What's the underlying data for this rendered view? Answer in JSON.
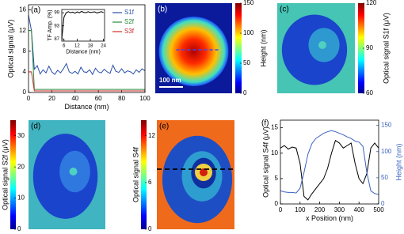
{
  "chart_data": [
    {
      "type": "line",
      "label": "(a)",
      "xlabel": "Distance (nm)",
      "ylabel": "Optical signal (μV)",
      "xlim": [
        0,
        100
      ],
      "xticks": [
        0,
        20,
        40,
        60,
        80,
        100
      ],
      "ylim": [
        0,
        17
      ],
      "yticks": [
        0,
        4,
        8,
        12,
        16
      ],
      "legend": "upper right",
      "x": [
        0,
        2.5,
        5,
        7.5,
        10,
        12.5,
        15,
        17.5,
        20,
        22.5,
        25,
        27.5,
        30,
        32.5,
        35,
        37.5,
        40,
        42.5,
        45,
        47.5,
        50,
        52.5,
        55,
        57.5,
        60,
        62.5,
        65,
        67.5,
        70,
        72.5,
        75,
        77.5,
        80,
        82.5,
        85,
        87.5,
        90,
        92.5,
        95,
        97.5,
        100
      ],
      "series": [
        {
          "name": "S1f",
          "color": "#2a4fa8",
          "values": [
            15,
            12,
            4.5,
            5.2,
            3.6,
            4.4,
            3.8,
            5.1,
            4.0,
            3.5,
            4.3,
            3.8,
            4.6,
            5.6,
            4.0,
            3.7,
            4.1,
            3.6,
            4.9,
            4.0,
            3.9,
            4.4,
            3.5,
            4.7,
            4.0,
            3.8,
            4.5,
            4.0,
            3.7,
            5.3,
            4.1,
            3.9,
            4.6,
            3.8,
            4.2,
            4.0,
            3.6,
            4.4,
            3.9,
            4.6,
            4.2
          ]
        },
        {
          "name": "S2f",
          "color": "#2a8a3a",
          "values": [
            12,
            12,
            0.6,
            0.6,
            0.6,
            0.6,
            0.6,
            0.6,
            0.6,
            0.6,
            0.6,
            0.6,
            0.6,
            0.6,
            0.6,
            0.6,
            0.6,
            0.6,
            0.6,
            0.6,
            0.6,
            0.6,
            0.6,
            0.6,
            0.6,
            0.6,
            0.6,
            0.6,
            0.6,
            0.6,
            0.6,
            0.6,
            0.6,
            0.6,
            0.6,
            0.6,
            0.6,
            0.6,
            0.6,
            0.6,
            0.6
          ]
        },
        {
          "name": "S3f",
          "color": "#d02a2a",
          "values": [
            4,
            4,
            0.3,
            0.3,
            0.3,
            0.3,
            0.3,
            0.3,
            0.3,
            0.3,
            0.3,
            0.3,
            0.3,
            0.3,
            0.3,
            0.3,
            0.3,
            0.3,
            0.3,
            0.3,
            0.3,
            0.3,
            0.3,
            0.3,
            0.3,
            0.3,
            0.3,
            0.3,
            0.3,
            0.3,
            0.3,
            0.3,
            0.3,
            0.3,
            0.3,
            0.3,
            0.3,
            0.3,
            0.3,
            0.3,
            0.3
          ]
        }
      ],
      "inset": {
        "xlabel": "Distance (nm)",
        "ylabel": "TF Amp. (%)",
        "xlim": [
          5,
          24.5
        ],
        "xticks": [
          6,
          12,
          18,
          24
        ],
        "ylim": [
          86,
          100.5
        ],
        "yticks": [
          87,
          93,
          99
        ],
        "color": "#000000",
        "x": [
          5,
          6,
          7,
          8,
          9,
          10,
          11,
          12,
          13,
          14,
          15,
          16,
          17,
          18,
          19,
          20,
          21,
          22,
          23,
          24
        ],
        "values": [
          87,
          97,
          99,
          99.5,
          99,
          99.3,
          98.8,
          99.4,
          99,
          99.6,
          99.2,
          99,
          99.5,
          99.1,
          99.3,
          99.4,
          98.9,
          99.2,
          99.5,
          99.1
        ]
      }
    },
    {
      "type": "image",
      "label": "(b)",
      "annotation": "100 nm",
      "colorbar": {
        "label": "Height (nm)",
        "lim": [
          0,
          150
        ],
        "ticks": [
          0,
          50,
          100,
          150
        ]
      }
    },
    {
      "type": "image",
      "label": "(c)",
      "colorbar": {
        "label": "Optical signal S1f (μV)",
        "lim": [
          60,
          120
        ],
        "ticks": [
          60,
          90,
          120
        ]
      }
    },
    {
      "type": "image",
      "label": "(d)",
      "colorbar": {
        "label": "Optical signal S2f (μV)",
        "lim": [
          0,
          35
        ],
        "ticks": [
          0,
          10,
          20,
          30
        ]
      }
    },
    {
      "type": "image",
      "label": "(e)",
      "colorbar": {
        "label": "Optical signal S4f",
        "lim": [
          0,
          14
        ],
        "ticks": [
          0,
          6,
          12
        ]
      }
    },
    {
      "type": "line",
      "label": "(f)",
      "xlabel": "x Position (nm)",
      "ylabel": "Optical signal S4f (μV)",
      "y2label": "Height (nm)",
      "xlim": [
        0,
        500
      ],
      "xticks": [
        0,
        100,
        200,
        300,
        400,
        500
      ],
      "ylim": [
        0,
        16.5
      ],
      "yticks": [
        0,
        5,
        10,
        15
      ],
      "y2lim": [
        0,
        160
      ],
      "y2ticks": [
        0,
        50,
        100,
        150
      ],
      "x": [
        0,
        20,
        40,
        60,
        80,
        100,
        120,
        140,
        160,
        180,
        200,
        220,
        240,
        260,
        280,
        300,
        320,
        340,
        360,
        380,
        400,
        420,
        440,
        460,
        480,
        500
      ],
      "series": [
        {
          "color": "#000000",
          "values": [
            11,
            11.5,
            10.8,
            11.2,
            11,
            8,
            1.5,
            0.8,
            2,
            3,
            4,
            5,
            7,
            10,
            12.5,
            12,
            11,
            11.5,
            12,
            8,
            5,
            4,
            6,
            11,
            12,
            11
          ]
        },
        {
          "color": "#3a62c0",
          "axis": "y2",
          "values": [
            25,
            23,
            22,
            22,
            21,
            30,
            60,
            95,
            115,
            125,
            130,
            135,
            138,
            140,
            138,
            135,
            132,
            128,
            125,
            120,
            118,
            110,
            60,
            25,
            20,
            18
          ]
        }
      ]
    }
  ]
}
